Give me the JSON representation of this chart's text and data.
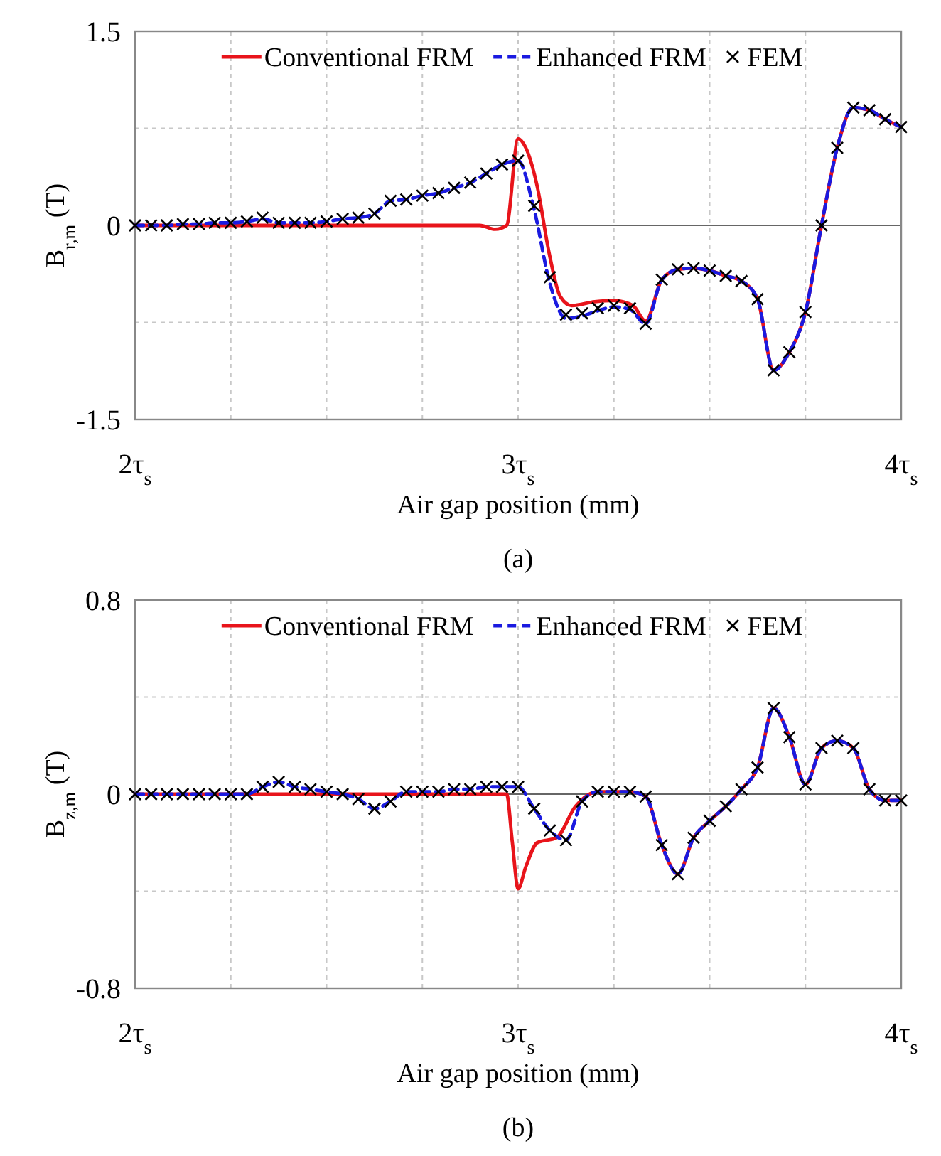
{
  "chart_data": [
    {
      "type": "line",
      "ylabel": "B$_{r,m}$ (T)",
      "xlabel": "Air gap position (mm)",
      "annotations": [
        "(a)"
      ],
      "xlim": [
        2,
        4
      ],
      "xticks": [
        {
          "value": 2,
          "label": "2τ$_{s}$"
        },
        {
          "value": 2.25,
          "label": null
        },
        {
          "value": 2.5,
          "label": null
        },
        {
          "value": 2.75,
          "label": null
        },
        {
          "value": 3,
          "label": "3τ$_{s}$"
        },
        {
          "value": 3.25,
          "label": null
        },
        {
          "value": 3.5,
          "label": null
        },
        {
          "value": 3.75,
          "label": null
        },
        {
          "value": 4,
          "label": "4τ$_{s}$"
        }
      ],
      "ylim": [
        -1.5,
        1.5
      ],
      "yticks": [
        -1.5,
        {
          "value": -0.75,
          "label": null
        },
        0,
        {
          "value": 0.75,
          "label": null
        },
        1.5
      ],
      "grid": true,
      "legend": "top",
      "ref_lines": [
        {
          "axis": "y",
          "value": 0,
          "color": "#666666"
        }
      ],
      "series": [
        {
          "name": "Conventional FRM",
          "type": "line",
          "color": "#e8141b",
          "line_style": "solid",
          "x": [
            2,
            2.5,
            2.9,
            2.94,
            2.97,
            3.0,
            3.02,
            3.05,
            3.08,
            3.11,
            3.14,
            3.2,
            3.25,
            3.3,
            3.333,
            3.375,
            3.417,
            3.458,
            3.5,
            3.542,
            3.583,
            3.625,
            3.667,
            3.708,
            3.75,
            3.792,
            3.833,
            3.875,
            3.917,
            3.958,
            4.0
          ],
          "values": [
            0,
            0,
            0,
            -0.03,
            0,
            0.67,
            0.6,
            0.3,
            -0.2,
            -0.55,
            -0.62,
            -0.59,
            -0.58,
            -0.62,
            -0.74,
            -0.42,
            -0.34,
            -0.33,
            -0.35,
            -0.39,
            -0.43,
            -0.57,
            -1.12,
            -0.98,
            -0.67,
            0,
            0.6,
            0.91,
            0.89,
            0.82,
            0.76
          ]
        },
        {
          "name": "Enhanced FRM",
          "type": "line",
          "color": "#1a1ae0",
          "line_style": "dashed",
          "x": [
            2,
            2.042,
            2.083,
            2.125,
            2.167,
            2.208,
            2.25,
            2.292,
            2.333,
            2.375,
            2.417,
            2.458,
            2.5,
            2.542,
            2.583,
            2.625,
            2.667,
            2.708,
            2.75,
            2.792,
            2.833,
            2.875,
            2.917,
            2.958,
            3.0,
            3.042,
            3.083,
            3.125,
            3.167,
            3.208,
            3.25,
            3.292,
            3.333,
            3.375,
            3.417,
            3.458,
            3.5,
            3.542,
            3.583,
            3.625,
            3.667,
            3.708,
            3.75,
            3.792,
            3.833,
            3.875,
            3.917,
            3.958,
            4.0
          ],
          "values": [
            0,
            0,
            0,
            0.01,
            0.01,
            0.02,
            0.02,
            0.03,
            0.05,
            0.02,
            0.02,
            0.02,
            0.03,
            0.05,
            0.06,
            0.09,
            0.19,
            0.2,
            0.23,
            0.25,
            0.29,
            0.33,
            0.4,
            0.47,
            0.5,
            0.12,
            -0.45,
            -0.72,
            -0.7,
            -0.66,
            -0.63,
            -0.65,
            -0.76,
            -0.42,
            -0.34,
            -0.33,
            -0.35,
            -0.39,
            -0.43,
            -0.57,
            -1.12,
            -0.98,
            -0.67,
            0,
            0.6,
            0.91,
            0.89,
            0.82,
            0.76
          ]
        },
        {
          "name": "FEM",
          "type": "scatter",
          "marker": "cross",
          "color": "#000000",
          "x": [
            2,
            2.042,
            2.083,
            2.125,
            2.167,
            2.208,
            2.25,
            2.292,
            2.333,
            2.375,
            2.417,
            2.458,
            2.5,
            2.542,
            2.583,
            2.625,
            2.667,
            2.708,
            2.75,
            2.792,
            2.833,
            2.875,
            2.917,
            2.958,
            3.0,
            3.042,
            3.083,
            3.125,
            3.167,
            3.208,
            3.25,
            3.292,
            3.333,
            3.375,
            3.417,
            3.458,
            3.5,
            3.542,
            3.583,
            3.625,
            3.667,
            3.708,
            3.75,
            3.792,
            3.833,
            3.875,
            3.917,
            3.958,
            4.0
          ],
          "values": [
            0,
            0,
            0,
            0.01,
            0.01,
            0.02,
            0.02,
            0.03,
            0.06,
            0.02,
            0.02,
            0.02,
            0.03,
            0.05,
            0.06,
            0.09,
            0.19,
            0.2,
            0.23,
            0.25,
            0.29,
            0.33,
            0.4,
            0.47,
            0.5,
            0.15,
            -0.4,
            -0.69,
            -0.68,
            -0.64,
            -0.62,
            -0.64,
            -0.76,
            -0.42,
            -0.34,
            -0.33,
            -0.35,
            -0.39,
            -0.43,
            -0.57,
            -1.12,
            -0.98,
            -0.67,
            0,
            0.6,
            0.91,
            0.89,
            0.82,
            0.76
          ]
        }
      ]
    },
    {
      "type": "line",
      "ylabel": "B$_{z,m}$ (T)",
      "xlabel": "Air gap position (mm)",
      "annotations": [
        "(b)"
      ],
      "xlim": [
        2,
        4
      ],
      "xticks": [
        {
          "value": 2,
          "label": "2τ$_{s}$"
        },
        {
          "value": 2.25,
          "label": null
        },
        {
          "value": 2.5,
          "label": null
        },
        {
          "value": 2.75,
          "label": null
        },
        {
          "value": 3,
          "label": "3τ$_{s}$"
        },
        {
          "value": 3.25,
          "label": null
        },
        {
          "value": 3.5,
          "label": null
        },
        {
          "value": 3.75,
          "label": null
        },
        {
          "value": 4,
          "label": "4τ$_{s}$"
        }
      ],
      "ylim": [
        -0.8,
        0.8
      ],
      "yticks": [
        -0.8,
        {
          "value": -0.4,
          "label": null
        },
        0,
        {
          "value": 0.4,
          "label": null
        },
        0.8
      ],
      "grid": true,
      "legend": "top",
      "ref_lines": [
        {
          "axis": "y",
          "value": 0,
          "color": "#666666"
        }
      ],
      "series": [
        {
          "name": "Conventional FRM",
          "type": "line",
          "color": "#e8141b",
          "line_style": "solid",
          "x": [
            2,
            2.5,
            2.97,
            2.985,
            3.0,
            3.02,
            3.05,
            3.1,
            3.15,
            3.208,
            3.25,
            3.292,
            3.333,
            3.375,
            3.417,
            3.458,
            3.5,
            3.542,
            3.583,
            3.625,
            3.667,
            3.708,
            3.75,
            3.792,
            3.833,
            3.875,
            3.917,
            3.958,
            4.0
          ],
          "values": [
            0,
            0,
            0,
            -0.2,
            -0.39,
            -0.3,
            -0.2,
            -0.18,
            -0.05,
            0.01,
            0.01,
            0.01,
            -0.01,
            -0.21,
            -0.33,
            -0.18,
            -0.11,
            -0.05,
            0.02,
            0.11,
            0.355,
            0.235,
            0.04,
            0.19,
            0.22,
            0.19,
            0.02,
            -0.026,
            -0.026
          ]
        },
        {
          "name": "Enhanced FRM",
          "type": "line",
          "color": "#1a1ae0",
          "line_style": "dashed",
          "x": [
            2,
            2.042,
            2.083,
            2.125,
            2.167,
            2.208,
            2.25,
            2.292,
            2.333,
            2.375,
            2.417,
            2.458,
            2.5,
            2.542,
            2.583,
            2.625,
            2.667,
            2.708,
            2.75,
            2.792,
            2.833,
            2.875,
            2.917,
            2.958,
            3.0,
            3.042,
            3.083,
            3.125,
            3.167,
            3.208,
            3.25,
            3.292,
            3.333,
            3.375,
            3.417,
            3.458,
            3.5,
            3.542,
            3.583,
            3.625,
            3.667,
            3.708,
            3.75,
            3.792,
            3.833,
            3.875,
            3.917,
            3.958,
            4.0
          ],
          "values": [
            0,
            0,
            0,
            0,
            0,
            0,
            0,
            0,
            0.03,
            0.05,
            0.03,
            0.02,
            0.01,
            0,
            -0.02,
            -0.06,
            -0.03,
            0.01,
            0.01,
            0.01,
            0.02,
            0.02,
            0.03,
            0.03,
            0.03,
            -0.06,
            -0.15,
            -0.19,
            -0.03,
            0.01,
            0.01,
            0.01,
            -0.01,
            -0.21,
            -0.33,
            -0.18,
            -0.11,
            -0.05,
            0.02,
            0.11,
            0.355,
            0.235,
            0.04,
            0.19,
            0.22,
            0.19,
            0.02,
            -0.026,
            -0.026
          ]
        },
        {
          "name": "FEM",
          "type": "scatter",
          "marker": "cross",
          "color": "#000000",
          "x": [
            2,
            2.042,
            2.083,
            2.125,
            2.167,
            2.208,
            2.25,
            2.292,
            2.333,
            2.375,
            2.417,
            2.458,
            2.5,
            2.542,
            2.583,
            2.625,
            2.667,
            2.708,
            2.75,
            2.792,
            2.833,
            2.875,
            2.917,
            2.958,
            3.0,
            3.042,
            3.083,
            3.125,
            3.167,
            3.208,
            3.25,
            3.292,
            3.333,
            3.375,
            3.417,
            3.458,
            3.5,
            3.542,
            3.583,
            3.625,
            3.667,
            3.708,
            3.75,
            3.792,
            3.833,
            3.875,
            3.917,
            3.958,
            4.0
          ],
          "values": [
            0,
            0,
            0,
            0,
            0,
            0,
            0,
            0,
            0.03,
            0.05,
            0.03,
            0.02,
            0.01,
            0,
            -0.02,
            -0.06,
            -0.03,
            0.01,
            0.01,
            0.01,
            0.02,
            0.02,
            0.03,
            0.03,
            0.03,
            -0.06,
            -0.15,
            -0.19,
            -0.03,
            0.01,
            0.01,
            0.01,
            -0.01,
            -0.21,
            -0.33,
            -0.18,
            -0.11,
            -0.05,
            0.02,
            0.11,
            0.355,
            0.235,
            0.04,
            0.19,
            0.22,
            0.19,
            0.02,
            -0.026,
            -0.026
          ]
        }
      ]
    }
  ]
}
